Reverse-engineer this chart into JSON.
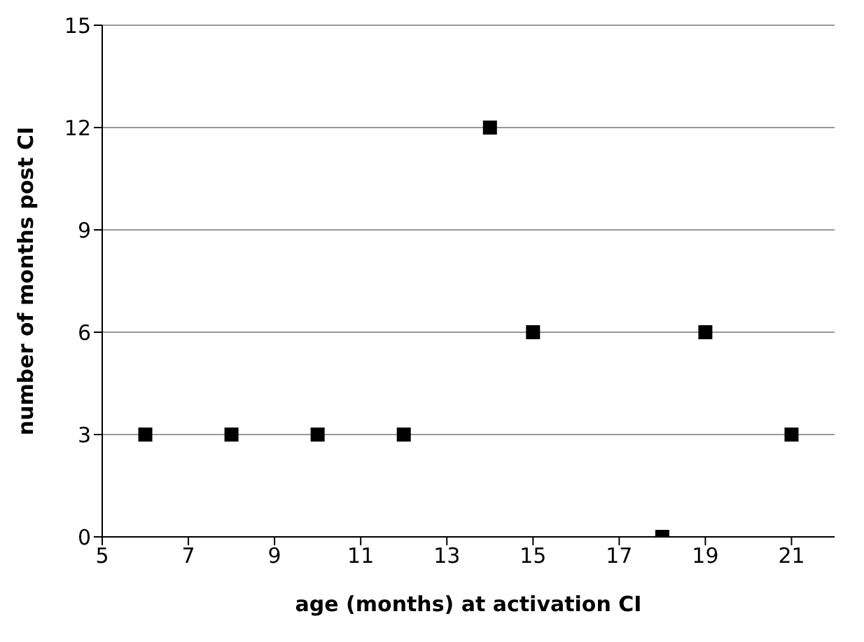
{
  "chart_data": {
    "type": "scatter",
    "xlabel": "age (months) at activation CI",
    "ylabel": "number of months post CI",
    "x": [
      6,
      8,
      10,
      12,
      14,
      15,
      18,
      19,
      21
    ],
    "series": [
      {
        "color": "#000000",
        "values": [
          3,
          3,
          3,
          3,
          12,
          6,
          0,
          6,
          3
        ]
      }
    ],
    "xlim": [
      5,
      22
    ],
    "xticks": [
      5,
      7,
      9,
      11,
      13,
      15,
      17,
      19,
      21
    ],
    "ylim": [
      0,
      15
    ],
    "yticks": [
      0,
      3,
      6,
      9,
      12,
      15
    ],
    "grid": "y",
    "marker": "square"
  }
}
